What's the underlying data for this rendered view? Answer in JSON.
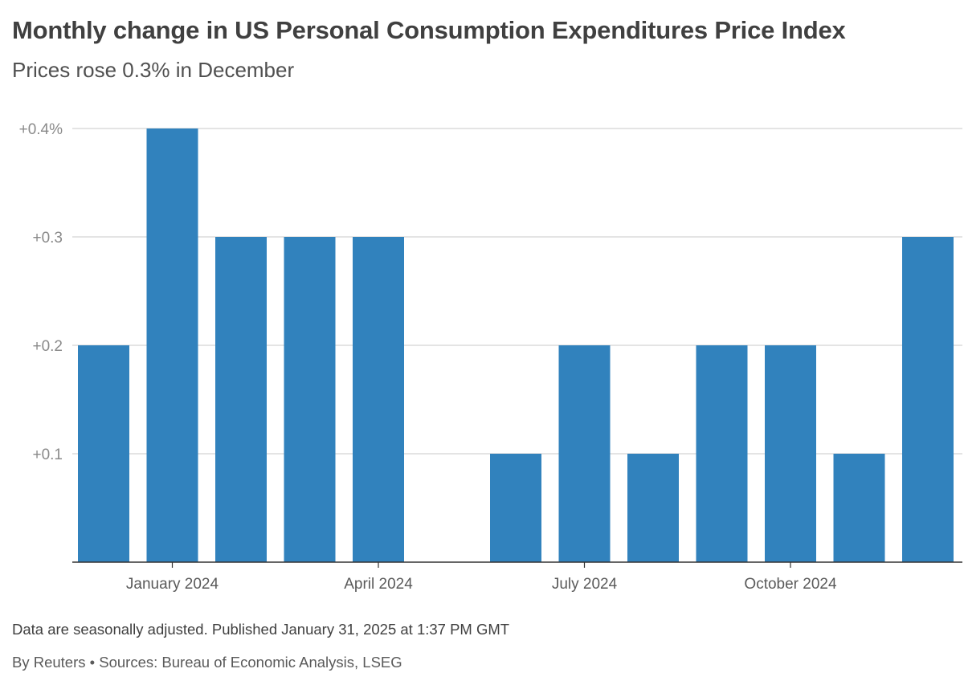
{
  "header": {
    "title": "Monthly change in US Personal Consumption Expenditures Price Index",
    "subtitle": "Prices rose 0.3% in December"
  },
  "footer": {
    "note": "Data are seasonally adjusted. Published January 31, 2025 at 1:37 PM GMT",
    "source": "By Reuters • Sources: Bureau of Economic Analysis, LSEG"
  },
  "chart_data": {
    "type": "bar",
    "title": "Monthly change in US Personal Consumption Expenditures Price Index",
    "subtitle": "Prices rose 0.3% in December",
    "xlabel": "",
    "ylabel": "",
    "unit": "%",
    "categories": [
      "2023-12",
      "2024-01",
      "2024-02",
      "2024-03",
      "2024-04",
      "2024-05",
      "2024-06",
      "2024-07",
      "2024-08",
      "2024-09",
      "2024-10",
      "2024-11",
      "2024-12"
    ],
    "values": [
      0.2,
      0.4,
      0.3,
      0.3,
      0.3,
      0.0,
      0.1,
      0.2,
      0.1,
      0.2,
      0.2,
      0.1,
      0.3
    ],
    "ylim": [
      0,
      0.4
    ],
    "y_ticks": [
      {
        "value": 0.1,
        "label": "+0.1"
      },
      {
        "value": 0.2,
        "label": "+0.2"
      },
      {
        "value": 0.3,
        "label": "+0.3"
      },
      {
        "value": 0.4,
        "label": "+0.4%"
      }
    ],
    "x_ticks": [
      {
        "index": 1,
        "label": "January 2024"
      },
      {
        "index": 4,
        "label": "April 2024"
      },
      {
        "index": 7,
        "label": "July 2024"
      },
      {
        "index": 10,
        "label": "October 2024"
      }
    ],
    "grid": true,
    "legend": "none",
    "colors": {
      "bar": "#3182bd",
      "grid": "#d4d4d4",
      "axis": "#333333"
    }
  }
}
